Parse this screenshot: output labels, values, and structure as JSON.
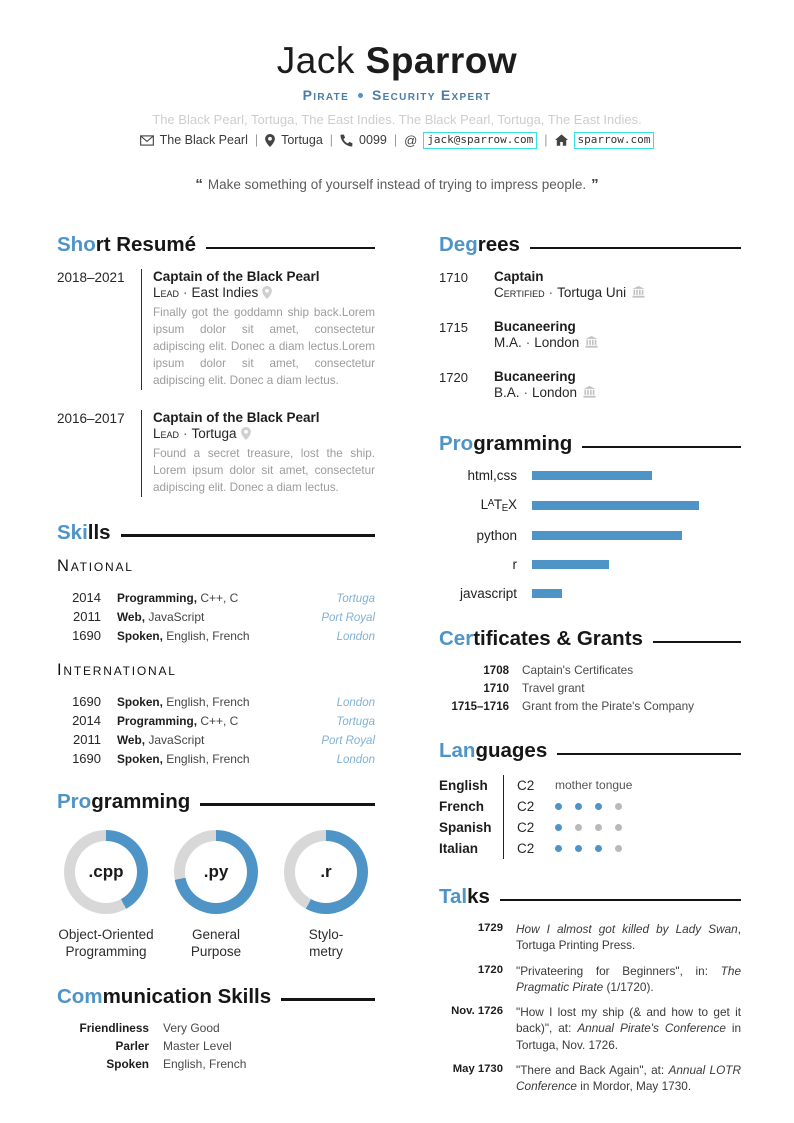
{
  "colors": {
    "accent": "#4e94c7",
    "tagline_blue": "#4a7ea9",
    "place_blue": "#7fb2d6",
    "link_border_cyan": "#35dfe6",
    "wheel_gray": "#d8d8d8",
    "dot_gray": "#b9b9b9"
  },
  "glyphs": {
    "dot_separator": "·",
    "pipe_separator": "|",
    "open_quote": "“",
    "close_quote": "”"
  },
  "header": {
    "first_name": "Jack",
    "last_name": "Sparrow",
    "tagline_left": "Pirate",
    "tagline_right": "Security Expert",
    "faded_line": "The Black Pearl, Tortuga, The East Indies. The Black Pearl, Tortuga, The East Indies.",
    "contact": [
      {
        "icon": "envelope-icon",
        "text": "The Black Pearl",
        "boxed": false
      },
      {
        "icon": "location-pin-icon",
        "text": "Tortuga",
        "boxed": false
      },
      {
        "icon": "phone-icon",
        "text": "0099",
        "boxed": false
      },
      {
        "icon": "at-icon",
        "text": "jack@sparrow.com",
        "boxed": true
      },
      {
        "icon": "home-icon",
        "text": "sparrow.com",
        "boxed": true
      }
    ],
    "quote": "Make something of yourself instead of trying to impress people."
  },
  "left": {
    "short_resume": {
      "heading": {
        "accent": "Sho",
        "rest": "rt Resumé"
      },
      "entries": [
        {
          "dates": "2018–2021",
          "title": "Captain of the Black Pearl",
          "role": "Lead",
          "location": "East Indies",
          "description": "Finally got the goddamn ship back.Lorem ipsum dolor sit amet, consectetur adipiscing elit. Donec a diam lectus.Lorem ipsum dolor sit amet, consectetur adipiscing elit. Donec a diam lectus."
        },
        {
          "dates": "2016–2017",
          "title": "Captain of the Black Pearl",
          "role": "Lead",
          "location": "Tortuga",
          "description": "Found a secret treasure, lost the ship. Lorem ipsum dolor sit amet, consectetur adipiscing elit. Donec a diam lectus."
        }
      ]
    },
    "skills": {
      "heading": {
        "accent": "Ski",
        "rest": "lls"
      },
      "groups": [
        {
          "name": "National",
          "rows": [
            {
              "year": "2014",
              "label": "Programming,",
              "detail": "C++, C",
              "place": "Tortuga"
            },
            {
              "year": "2011",
              "label": "Web,",
              "detail": "JavaScript",
              "place": "Port Royal"
            },
            {
              "year": "1690",
              "label": "Spoken,",
              "detail": "English, French",
              "place": "London"
            }
          ]
        },
        {
          "name": "International",
          "rows": [
            {
              "year": "1690",
              "label": "Spoken,",
              "detail": "English, French",
              "place": "London"
            },
            {
              "year": "2014",
              "label": "Programming,",
              "detail": "C++, C",
              "place": "Tortuga"
            },
            {
              "year": "2011",
              "label": "Web,",
              "detail": "JavaScript",
              "place": "Port Royal"
            },
            {
              "year": "1690",
              "label": "Spoken,",
              "detail": "English, French",
              "place": "London"
            }
          ]
        }
      ]
    },
    "programming_wheels": {
      "heading": {
        "accent": "Pro",
        "rest": "gramming"
      }
    },
    "communication": {
      "heading": {
        "accent": "Com",
        "rest": "munication Skills"
      },
      "rows": [
        {
          "label": "Friendliness",
          "value": "Very Good"
        },
        {
          "label": "Parler",
          "value": "Master Level"
        },
        {
          "label": "Spoken",
          "value": "English, French"
        }
      ]
    }
  },
  "right": {
    "degrees": {
      "heading": {
        "accent": "Deg",
        "rest": "rees"
      },
      "entries": [
        {
          "year": "1710",
          "title": "Captain",
          "degree": "Certified",
          "school": "Tortuga Uni"
        },
        {
          "year": "1715",
          "title": "Bucaneering",
          "degree": "M.A.",
          "school": "London"
        },
        {
          "year": "1720",
          "title": "Bucaneering",
          "degree": "B.A.",
          "school": "London"
        }
      ]
    },
    "programming_bars": {
      "heading": {
        "accent": "Pro",
        "rest": "gramming"
      }
    },
    "certificates": {
      "heading": {
        "accent": "Cer",
        "rest": "tificates & Grants"
      },
      "rows": [
        {
          "year": "1708",
          "text": "Captain's Certificates"
        },
        {
          "year": "1710",
          "text": "Travel grant"
        },
        {
          "year": "1715–1716",
          "text": "Grant from the Pirate's Company"
        }
      ]
    },
    "languages": {
      "heading": {
        "accent": "Lan",
        "rest": "guages"
      },
      "rows": [
        {
          "name": "English",
          "level": "C2",
          "note": "mother tongue"
        },
        {
          "name": "French",
          "level": "C2",
          "dots_filled": 3,
          "dots_total": 4
        },
        {
          "name": "Spanish",
          "level": "C2",
          "dots_filled": 1,
          "dots_total": 4
        },
        {
          "name": "Italian",
          "level": "C2",
          "dots_filled": 3,
          "dots_total": 4
        }
      ]
    },
    "talks": {
      "heading": {
        "accent": "Tal",
        "rest": "ks"
      },
      "entries": [
        {
          "date": "1729",
          "segments": [
            {
              "text": "How I almost got killed by Lady Swan",
              "italic": true
            },
            {
              "text": ", Tortuga Printing Press.",
              "italic": false
            }
          ]
        },
        {
          "date": "1720",
          "segments": [
            {
              "text": "\"Privateering for Beginners\", in: ",
              "italic": false
            },
            {
              "text": "The Pragmatic Pirate",
              "italic": true
            },
            {
              "text": " (1/1720).",
              "italic": false
            }
          ]
        },
        {
          "date": "Nov. 1726",
          "segments": [
            {
              "text": "\"How I lost my ship (& and how to get it back)\", at: ",
              "italic": false
            },
            {
              "text": "Annual Pirate's Conference",
              "italic": true
            },
            {
              "text": " in Tortuga, Nov. 1726.",
              "italic": false
            }
          ]
        },
        {
          "date": "May 1730",
          "segments": [
            {
              "text": "\"There and Back Again\", at: ",
              "italic": false
            },
            {
              "text": "Annual LOTR Conference",
              "italic": true
            },
            {
              "text": " in Mordor, May 1730.",
              "italic": false
            }
          ]
        }
      ]
    }
  },
  "chart_data": [
    {
      "type": "bar",
      "orientation": "horizontal",
      "title": "Programming",
      "categories": [
        "html,css",
        "LaTeX",
        "python",
        "r",
        "javascript"
      ],
      "values": [
        72,
        100,
        90,
        46,
        18
      ],
      "value_note": "percent of longest bar (LaTeX = 100)",
      "bar_color": "#4e94c7",
      "grid": false,
      "legend": false
    },
    {
      "type": "donut",
      "title": "Programming",
      "items": [
        {
          "label": ".cpp",
          "percent": 42,
          "caption_lines": [
            "Object-Oriented",
            "Programming"
          ]
        },
        {
          "label": ".py",
          "percent": 72,
          "caption_lines": [
            "General",
            "Purpose"
          ]
        },
        {
          "label": ".r",
          "percent": 58,
          "caption_lines": [
            "Stylo-",
            "metry"
          ]
        }
      ],
      "ring_colors": {
        "filled": "#4e94c7",
        "empty": "#d8d8d8"
      }
    }
  ]
}
